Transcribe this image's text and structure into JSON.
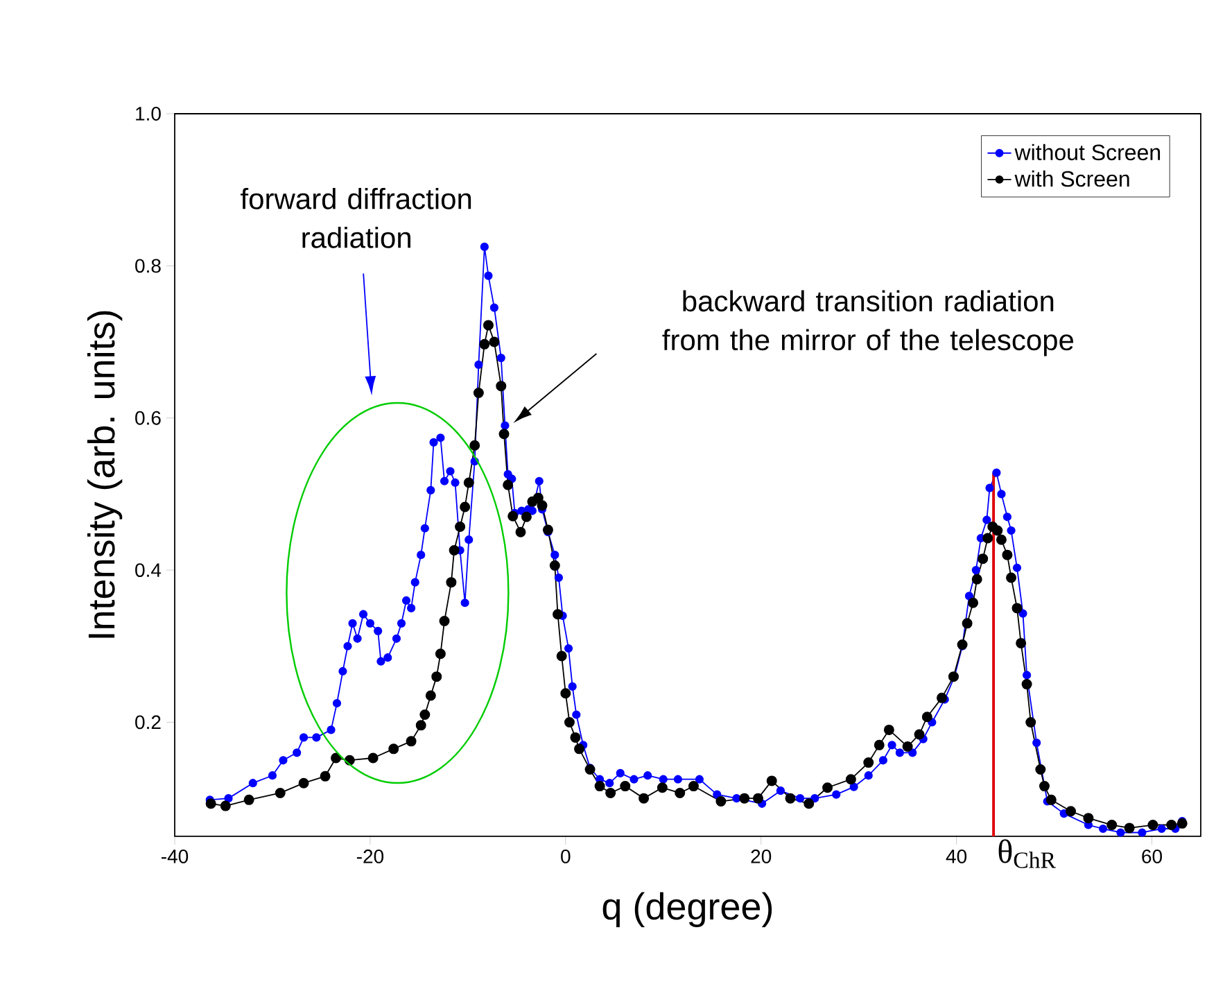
{
  "chart_data": {
    "type": "line",
    "xlabel": "q (degree)",
    "ylabel": "Intensity (arb. units)",
    "xlim": [
      -40,
      65
    ],
    "ylim": [
      0.05,
      1.0
    ],
    "xticks": [
      -40,
      -20,
      0,
      20,
      40,
      60
    ],
    "yticks": [
      0.2,
      0.4,
      0.6,
      0.8,
      {
        "value": 1.0,
        "label": "1.0"
      }
    ],
    "grid": false,
    "legend": "top right",
    "marker": "circle",
    "line_style": "solid",
    "series": [
      {
        "name": "without Screen",
        "color": "#0000ff",
        "x": [
          -36.4,
          -34.5,
          -32,
          -30,
          -28.9,
          -27.5,
          -26.8,
          -25.5,
          -24,
          -23.4,
          -22.8,
          -22.3,
          -21.8,
          -21.3,
          -20.7,
          -20,
          -19.2,
          -18.9,
          -18.2,
          -17.3,
          -16.8,
          -16.3,
          -15.8,
          -15.4,
          -14.8,
          -14.4,
          -13.8,
          -13.5,
          -12.8,
          -12.4,
          -11.8,
          -11.3,
          -10.8,
          -10.3,
          -9.9,
          -9.3,
          -8.9,
          -8.3,
          -7.9,
          -7.3,
          -6.6,
          -6.2,
          -5.9,
          -5.5,
          -5.2,
          -4.5,
          -3.8,
          -3.4,
          -2.7,
          -2.4,
          -1.8,
          -1.1,
          -0.7,
          -0.3,
          0.3,
          0.7,
          1.1,
          1.8,
          2.5,
          3.5,
          4.5,
          5.6,
          7,
          8.4,
          10,
          11.5,
          13.7,
          15.5,
          17.5,
          20.1,
          22,
          24,
          25.5,
          27.7,
          29.5,
          31,
          32.5,
          33.4,
          34.2,
          35.5,
          36.6,
          37.5,
          38.8,
          39.8,
          40.6,
          41.3,
          42,
          42.5,
          43.1,
          43.4,
          44.1,
          44.6,
          45.2,
          45.6,
          46.2,
          46.8,
          47.2,
          48.2,
          49.3,
          51,
          53.5,
          55,
          56.8,
          59,
          61,
          62.4,
          63.1
        ],
        "values": [
          0.098,
          0.1,
          0.12,
          0.13,
          0.15,
          0.16,
          0.18,
          0.18,
          0.19,
          0.225,
          0.267,
          0.3,
          0.33,
          0.31,
          0.342,
          0.33,
          0.32,
          0.28,
          0.285,
          0.31,
          0.33,
          0.36,
          0.35,
          0.384,
          0.42,
          0.455,
          0.505,
          0.568,
          0.574,
          0.517,
          0.53,
          0.515,
          0.426,
          0.357,
          0.44,
          0.543,
          0.67,
          0.825,
          0.787,
          0.745,
          0.679,
          0.59,
          0.526,
          0.52,
          0.475,
          0.478,
          0.48,
          0.478,
          0.517,
          0.48,
          0.45,
          0.42,
          0.39,
          0.34,
          0.297,
          0.247,
          0.21,
          0.17,
          0.14,
          0.125,
          0.12,
          0.133,
          0.125,
          0.13,
          0.125,
          0.125,
          0.125,
          0.105,
          0.1,
          0.093,
          0.11,
          0.1,
          0.1,
          0.105,
          0.115,
          0.13,
          0.15,
          0.17,
          0.16,
          0.16,
          0.178,
          0.2,
          0.23,
          0.26,
          0.3,
          0.366,
          0.4,
          0.442,
          0.466,
          0.508,
          0.528,
          0.5,
          0.47,
          0.452,
          0.403,
          0.343,
          0.262,
          0.173,
          0.096,
          0.08,
          0.065,
          0.06,
          0.055,
          0.055,
          0.06,
          0.06,
          0.07
        ]
      },
      {
        "name": "with Screen",
        "color": "#000000",
        "x": [
          -36.3,
          -34.8,
          -32.4,
          -29.2,
          -26.8,
          -24.6,
          -23.5,
          -22.1,
          -19.7,
          -17.6,
          -15.8,
          -14.8,
          -14.4,
          -13.8,
          -13.2,
          -12.8,
          -12.4,
          -11.7,
          -11.4,
          -10.8,
          -10.3,
          -9.9,
          -9.3,
          -8.9,
          -8.3,
          -7.9,
          -7.3,
          -6.6,
          -6.3,
          -5.9,
          -5.4,
          -4.6,
          -4.0,
          -3.4,
          -2.8,
          -2.4,
          -1.8,
          -1.1,
          -0.8,
          -0.4,
          0,
          0.4,
          1.0,
          1.4,
          2.5,
          3.5,
          4.6,
          6.1,
          8,
          9.9,
          11.7,
          13.1,
          15.9,
          18.3,
          19.7,
          21.1,
          23,
          24.9,
          26.8,
          29.2,
          31,
          32.1,
          33.1,
          35,
          36.2,
          37,
          38.5,
          39.7,
          40.6,
          41.1,
          41.7,
          42.1,
          42.7,
          43.2,
          43.7,
          44.2,
          44.6,
          45.2,
          45.6,
          46.2,
          46.6,
          47.2,
          47.6,
          48.6,
          49,
          49.7,
          51.7,
          53.5,
          55.9,
          57.7,
          60.1,
          62,
          63.1
        ],
        "values": [
          0.093,
          0.09,
          0.098,
          0.107,
          0.12,
          0.129,
          0.153,
          0.15,
          0.153,
          0.165,
          0.175,
          0.196,
          0.21,
          0.235,
          0.26,
          0.29,
          0.333,
          0.384,
          0.426,
          0.457,
          0.483,
          0.515,
          0.564,
          0.633,
          0.697,
          0.722,
          0.7,
          0.642,
          0.579,
          0.512,
          0.471,
          0.45,
          0.47,
          0.49,
          0.495,
          0.485,
          0.453,
          0.406,
          0.342,
          0.287,
          0.238,
          0.2,
          0.18,
          0.165,
          0.138,
          0.116,
          0.107,
          0.116,
          0.1,
          0.114,
          0.107,
          0.116,
          0.096,
          0.1,
          0.1,
          0.123,
          0.1,
          0.093,
          0.114,
          0.125,
          0.147,
          0.17,
          0.19,
          0.168,
          0.184,
          0.207,
          0.232,
          0.26,
          0.302,
          0.33,
          0.357,
          0.388,
          0.415,
          0.442,
          0.457,
          0.452,
          0.44,
          0.42,
          0.39,
          0.35,
          0.304,
          0.25,
          0.2,
          0.138,
          0.116,
          0.098,
          0.083,
          0.074,
          0.065,
          0.061,
          0.065,
          0.065,
          0.067
        ]
      }
    ],
    "ref_lines": [
      {
        "axis": "x",
        "value": 43.8,
        "label": "θ$_{ChR}$",
        "color": "#dd0000"
      }
    ],
    "annotations": [
      "forward diffraction radiation",
      "backward transition radiation from the mirror of the telescope"
    ]
  }
}
